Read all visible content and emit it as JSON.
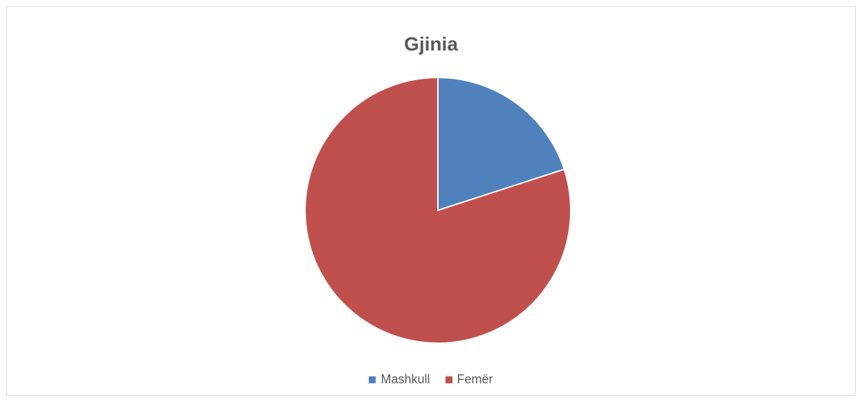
{
  "chart_data": {
    "type": "pie",
    "title": "Gjinia",
    "categories": [
      "Mashkull",
      "Femër"
    ],
    "values": [
      20,
      80
    ],
    "colors": [
      "#4f81bd",
      "#c0504d"
    ],
    "legend_position": "bottom",
    "start_angle_deg": 0,
    "direction": "clockwise"
  }
}
